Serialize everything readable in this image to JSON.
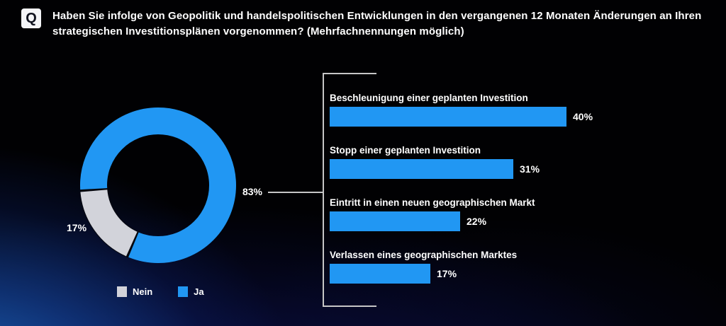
{
  "header": {
    "badge_label": "Q",
    "question": "Haben Sie infolge von Geopolitik und handelspolitischen Entwicklungen in den vergangenen 12 Monaten Änderungen an Ihren strategischen Investitionsplänen vorgenommen? (Mehrfachnennungen möglich)",
    "question_line1": "Haben Sie infolge von Geopolitik und handelspolitischen Entwicklungen in den vergangenen 12 Monaten Änderungen an Ihren",
    "question_line2": "strategischen Investitionsplänen vorgenommen? (Mehrfachnennungen möglich)"
  },
  "chart_data": [
    {
      "type": "pie",
      "subtype": "donut",
      "slices": [
        {
          "label": "Ja",
          "value": 83,
          "value_label": "83%",
          "color": "#2197f3"
        },
        {
          "label": "Nein",
          "value": 17,
          "value_label": "17%",
          "color": "#d2d3da"
        }
      ],
      "legend_position": "bottom",
      "legend_order": "Nein, Ja"
    },
    {
      "type": "bar",
      "orientation": "horizontal",
      "categories": [
        "Beschleunigung einer geplanten Investition",
        "Stopp einer geplanten Investition",
        "Eintritt in einen neuen geographischen Markt",
        "Verlassen eines geographischen Marktes"
      ],
      "values": [
        40,
        31,
        22,
        17
      ],
      "value_labels": [
        "40%",
        "31%",
        "22%",
        "17%"
      ],
      "bar_color": "#2197f3",
      "xlim": [
        0,
        100
      ],
      "axes": "hidden",
      "grid": false
    }
  ],
  "colors": {
    "accent_blue": "#2197f3",
    "slice_gray": "#d2d3da",
    "bracket_gray": "#c6c6c6",
    "background": "#010103"
  }
}
